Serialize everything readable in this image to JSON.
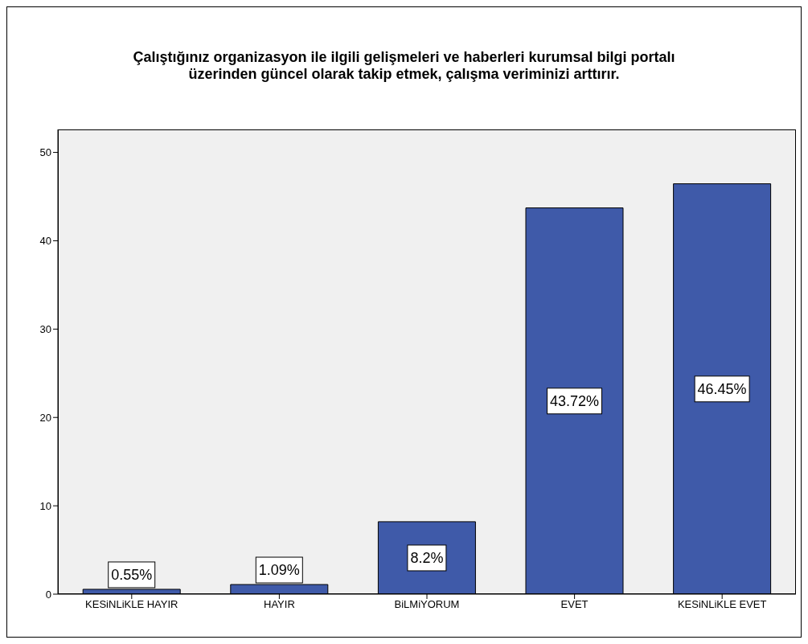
{
  "chart_data": {
    "type": "bar",
    "title": "Çalıştığınız organizasyon ile ilgili gelişmeleri ve haberleri kurumsal bilgi portalı\nüzerinden güncel olarak takip etmek, çalışma veriminizi arttırır.",
    "categories": [
      "KESiNLiKLE HAYIR",
      "HAYIR",
      "BiLMiYORUM",
      "EVET",
      "KESiNLiKLE EVET"
    ],
    "values": [
      0.55,
      1.09,
      8.2,
      43.72,
      46.45
    ],
    "value_labels": [
      "0.55%",
      "1.09%",
      "8.2%",
      "43.72%",
      "46.45%"
    ],
    "color": "#3f5aa9",
    "ylim": [
      0,
      52.6
    ],
    "yticks": [
      0,
      10,
      20,
      30,
      40,
      50
    ],
    "grid": false
  }
}
